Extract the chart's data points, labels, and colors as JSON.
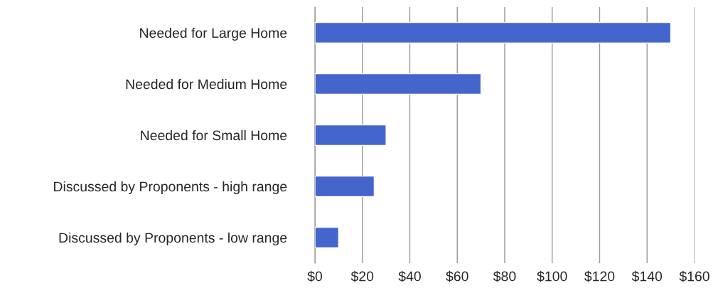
{
  "chart_data": {
    "type": "bar",
    "orientation": "horizontal",
    "categories": [
      "Needed for Large Home",
      "Needed for Medium Home",
      "Needed for Small Home",
      "Discussed by Proponents - high range",
      "Discussed by Proponents - low range"
    ],
    "values": [
      150,
      70,
      30,
      25,
      10
    ],
    "color": "#4466cc",
    "xlim": [
      0,
      160
    ],
    "xticks": [
      {
        "value": 0,
        "label": "$0"
      },
      {
        "value": 20,
        "label": "$20"
      },
      {
        "value": 40,
        "label": "$40"
      },
      {
        "value": 60,
        "label": "$60"
      },
      {
        "value": 80,
        "label": "$80"
      },
      {
        "value": 100,
        "label": "$100"
      },
      {
        "value": 120,
        "label": "$120"
      },
      {
        "value": 140,
        "label": "$140"
      },
      {
        "value": 160,
        "label": "$160"
      }
    ],
    "grid": "x",
    "legend": false
  }
}
